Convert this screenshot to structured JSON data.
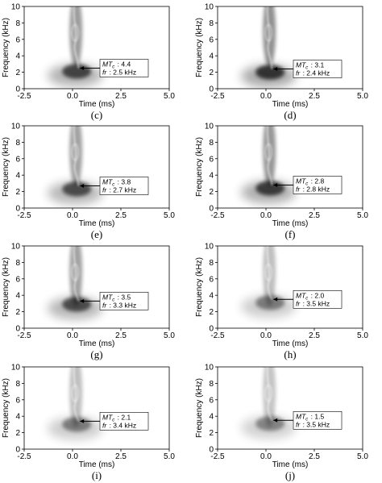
{
  "figure": {
    "xlabel": "Time (ms)",
    "ylabel": "Frequency (kHz)",
    "xticks": [
      "-2.5",
      "0.0",
      "2.5",
      "5.0"
    ],
    "yticks": [
      "0",
      "2",
      "4",
      "6",
      "8",
      "10"
    ],
    "xlim": [
      -2.5,
      5.0
    ],
    "ylim": [
      0,
      10
    ],
    "colormap": "grayscale, darker = higher energy"
  },
  "panels": [
    {
      "caption": "(c)",
      "mt_label": "MT",
      "mt_sub": "c",
      "mt_value": ": 4.4",
      "fr_label": "fr",
      "fr_value": ": 2.5 kHz",
      "intensity": 0.85,
      "peak_time_ms": 0.3,
      "peak_freq_khz": 2.5
    },
    {
      "caption": "(d)",
      "mt_label": "MT",
      "mt_sub": "c",
      "mt_value": ": 3.1",
      "fr_label": "fr",
      "fr_value": ": 2.4 kHz",
      "intensity": 0.95,
      "peak_time_ms": 0.3,
      "peak_freq_khz": 2.4
    },
    {
      "caption": "(e)",
      "mt_label": "MT",
      "mt_sub": "c",
      "mt_value": ": 3.8",
      "fr_label": "fr",
      "fr_value": ": 2.7 kHz",
      "intensity": 0.8,
      "peak_time_ms": 0.3,
      "peak_freq_khz": 2.7
    },
    {
      "caption": "(f)",
      "mt_label": "MT",
      "mt_sub": "c",
      "mt_value": ": 2.8",
      "fr_label": "fr",
      "fr_value": ": 2.8 kHz",
      "intensity": 0.9,
      "peak_time_ms": 0.3,
      "peak_freq_khz": 2.8
    },
    {
      "caption": "(g)",
      "mt_label": "MT",
      "mt_sub": "c",
      "mt_value": ": 3.5",
      "fr_label": "fr",
      "fr_value": ": 3.3 kHz",
      "intensity": 0.8,
      "peak_time_ms": 0.3,
      "peak_freq_khz": 3.3
    },
    {
      "caption": "(h)",
      "mt_label": "MT",
      "mt_sub": "c",
      "mt_value": ": 2.0",
      "fr_label": "fr",
      "fr_value": ": 3.5 kHz",
      "intensity": 0.55,
      "peak_time_ms": 0.3,
      "peak_freq_khz": 3.5
    },
    {
      "caption": "(i)",
      "mt_label": "MT",
      "mt_sub": "c",
      "mt_value": ": 2.1",
      "fr_label": "fr",
      "fr_value": ": 3.4 kHz",
      "intensity": 0.55,
      "peak_time_ms": 0.3,
      "peak_freq_khz": 3.4
    },
    {
      "caption": "(j)",
      "mt_label": "MT",
      "mt_sub": "c",
      "mt_value": ": 1.5",
      "fr_label": "fr",
      "fr_value": ": 3.5 kHz",
      "intensity": 0.5,
      "peak_time_ms": 0.3,
      "peak_freq_khz": 3.5
    }
  ]
}
